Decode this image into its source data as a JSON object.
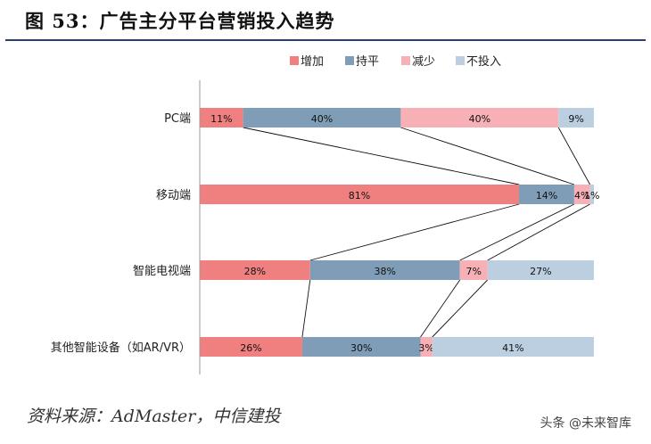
{
  "figure_title": "图 53：广告主分平台营销投入趋势",
  "source": "资料来源：AdMaster，中信建投",
  "watermark": "头条 @未来智库",
  "colors": {
    "increase": "#f08080",
    "flat": "#7f9db7",
    "decrease": "#f7b0b5",
    "no_invest": "#bccfe0",
    "title_rule": "#2e3f66"
  },
  "chart_data": {
    "type": "bar",
    "orientation": "horizontal",
    "stacked": "percent",
    "title": "",
    "xlabel": "",
    "ylabel": "",
    "xlim": [
      0,
      100
    ],
    "legend_position": "top",
    "grid": false,
    "categories": [
      "PC端",
      "移动端",
      "智能电视端",
      "其他智能设备（如AR/VR）"
    ],
    "series": [
      {
        "name": "增加",
        "values": [
          11,
          81,
          28,
          26
        ],
        "labels": [
          "11%",
          "81%",
          "28%",
          "26%"
        ]
      },
      {
        "name": "持平",
        "values": [
          40,
          14,
          38,
          30
        ],
        "labels": [
          "40%",
          "14%",
          "38%",
          "30%"
        ]
      },
      {
        "name": "减少",
        "values": [
          40,
          4,
          7,
          3
        ],
        "labels": [
          "40%",
          "4%",
          "7%",
          "3%"
        ]
      },
      {
        "name": "不投入",
        "values": [
          9,
          1,
          27,
          41
        ],
        "labels": [
          "9%",
          "1%",
          "27%",
          "41%"
        ]
      }
    ],
    "connector_lines": true
  }
}
